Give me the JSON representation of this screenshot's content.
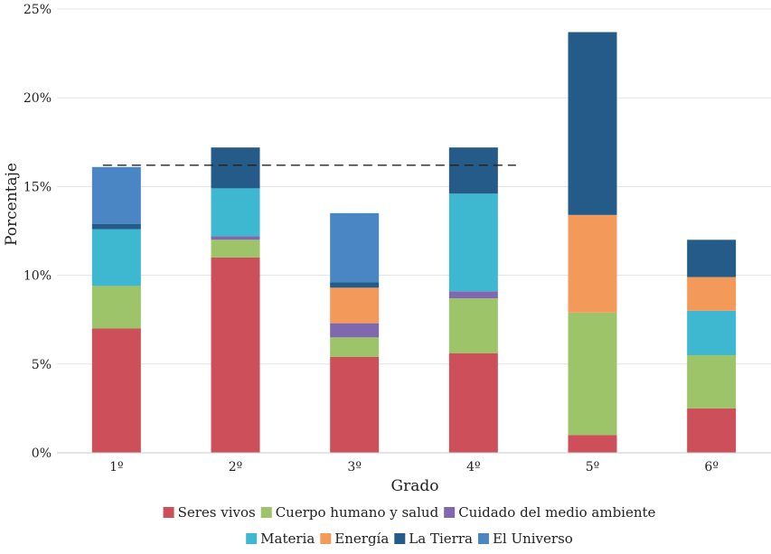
{
  "chart_data": {
    "type": "stacked-bar",
    "title": "",
    "xlabel": "Grado",
    "ylabel": "Porcentaje",
    "ylim": [
      0,
      25
    ],
    "yticks": [
      0,
      5,
      10,
      15,
      20,
      25
    ],
    "ytick_labels": [
      "0%",
      "5%",
      "10%",
      "15%",
      "20%",
      "25%"
    ],
    "categories": [
      "1º",
      "2º",
      "3º",
      "4º",
      "5º",
      "6º"
    ],
    "grid": true,
    "legend_position": "bottom",
    "reference_line": {
      "value": 16.2,
      "style": "dashed",
      "from_category": "1º",
      "to_category": "4º"
    },
    "series": [
      {
        "name": "Seres vivos",
        "color": "#cc4f5a",
        "values": [
          7.0,
          11.0,
          5.4,
          5.6,
          1.0,
          2.5
        ]
      },
      {
        "name": "Cuerpo humano y salud",
        "color": "#9dc468",
        "values": [
          2.4,
          1.0,
          1.1,
          3.1,
          6.9,
          3.0
        ]
      },
      {
        "name": "Cuidado del medio ambiente",
        "color": "#7f68ad",
        "values": [
          0.0,
          0.2,
          0.8,
          0.4,
          0.0,
          0.0
        ]
      },
      {
        "name": "Materia",
        "color": "#3db8d0",
        "values": [
          3.2,
          2.7,
          0.0,
          5.5,
          0.0,
          2.5
        ]
      },
      {
        "name": "Energía",
        "color": "#f39a5b",
        "values": [
          0.0,
          0.0,
          2.0,
          0.0,
          5.5,
          1.9
        ]
      },
      {
        "name": "La Tierra",
        "color": "#245b88",
        "values": [
          0.3,
          2.3,
          0.3,
          2.6,
          10.3,
          2.1
        ]
      },
      {
        "name": "El Universo",
        "color": "#4a86c4",
        "values": [
          3.2,
          0.0,
          3.9,
          0.0,
          0.0,
          0.0
        ]
      }
    ]
  }
}
